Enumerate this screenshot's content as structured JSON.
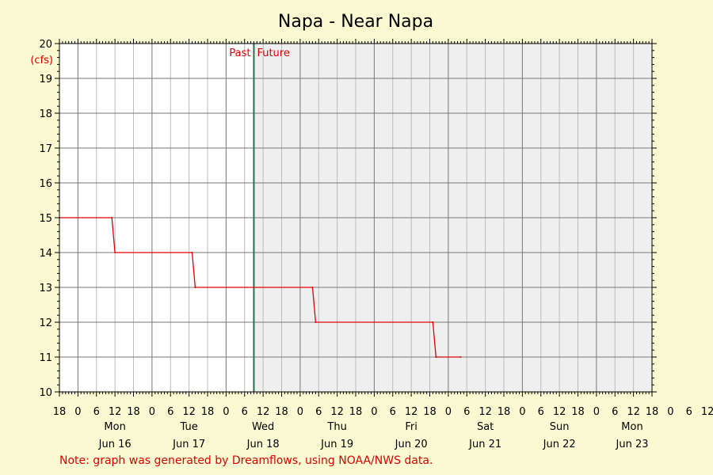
{
  "chart_data": {
    "type": "line",
    "title": "Napa - Near Napa",
    "y_unit": "(cfs)",
    "ylim": [
      10,
      20
    ],
    "y_ticks": [
      10,
      11,
      12,
      13,
      14,
      15,
      16,
      17,
      18,
      19,
      20
    ],
    "x_range_hours": [
      -6,
      186
    ],
    "x_hour_labels": [
      "18",
      "0",
      "6",
      "12",
      "18",
      "0",
      "6",
      "12",
      "18",
      "0",
      "6",
      "12",
      "18",
      "0",
      "6",
      "12",
      "18",
      "0",
      "6",
      "12",
      "18",
      "0",
      "6",
      "12",
      "18",
      "0",
      "6",
      "12",
      "18",
      "0",
      "6",
      "12",
      "18",
      "0",
      "6",
      "12"
    ],
    "day_labels": [
      {
        "day": "Mon",
        "date": "Jun 16"
      },
      {
        "day": "Tue",
        "date": "Jun 17"
      },
      {
        "day": "Wed",
        "date": "Jun 18"
      },
      {
        "day": "Thu",
        "date": "Jun 19"
      },
      {
        "day": "Fri",
        "date": "Jun 20"
      },
      {
        "day": "Sat",
        "date": "Jun 21"
      },
      {
        "day": "Sun",
        "date": "Jun 22"
      },
      {
        "day": "Mon",
        "date": "Jun 23"
      }
    ],
    "past_label": "Past",
    "future_label": "Future",
    "now_hour": 57,
    "series": [
      {
        "points": [
          [
            -6,
            15
          ],
          [
            11,
            15
          ],
          [
            12,
            14
          ],
          [
            37,
            14
          ],
          [
            38,
            13
          ],
          [
            76,
            13
          ],
          [
            77,
            12
          ],
          [
            115,
            12
          ],
          [
            116,
            11
          ],
          [
            124,
            11
          ]
        ]
      }
    ],
    "grid": true
  },
  "note": "Note: graph was generated by Dreamflows, using NOAA/NWS data.",
  "colors": {
    "background": "#fafad2",
    "plot_past": "#ffffff",
    "plot_future": "#efefef",
    "series": "#e00000",
    "now_line": "#2e6b4f",
    "grid_major": "#777777",
    "grid_minor": "#bbbbbb"
  }
}
